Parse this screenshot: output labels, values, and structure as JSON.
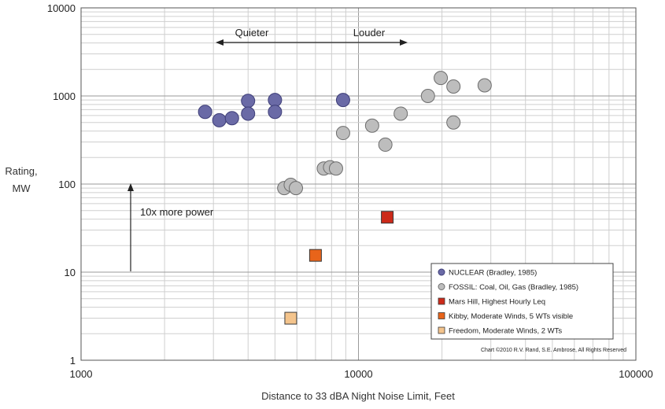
{
  "chart_data": {
    "type": "scatter",
    "xlabel": "Distance to 33 dBA Night Noise Limit, Feet",
    "ylabel": [
      "Rating,",
      "MW"
    ],
    "x_scale": "log",
    "y_scale": "log",
    "xlim": [
      1000,
      100000
    ],
    "ylim": [
      1,
      10000
    ],
    "x_ticks": [
      "1000",
      "10000",
      "100000"
    ],
    "y_ticks": [
      "1",
      "10",
      "100",
      "1000",
      "10000"
    ],
    "grid": true,
    "legend_position": "bottom-right",
    "series": [
      {
        "name": "NUCLEAR (Bradley, 1985)",
        "marker": "circle",
        "color": "#6a6aa6",
        "points": [
          {
            "x": 2800,
            "y": 660
          },
          {
            "x": 3150,
            "y": 530
          },
          {
            "x": 3500,
            "y": 560
          },
          {
            "x": 4000,
            "y": 880
          },
          {
            "x": 4000,
            "y": 630
          },
          {
            "x": 5000,
            "y": 900
          },
          {
            "x": 5000,
            "y": 660
          },
          {
            "x": 8800,
            "y": 900
          }
        ]
      },
      {
        "name": "FOSSIL: Coal, Oil, Gas (Bradley, 1985)",
        "marker": "circle",
        "color": "#bdbdbd",
        "points": [
          {
            "x": 5400,
            "y": 90
          },
          {
            "x": 5700,
            "y": 98
          },
          {
            "x": 5950,
            "y": 90
          },
          {
            "x": 7500,
            "y": 150
          },
          {
            "x": 7900,
            "y": 155
          },
          {
            "x": 8300,
            "y": 150
          },
          {
            "x": 8800,
            "y": 380
          },
          {
            "x": 11200,
            "y": 460
          },
          {
            "x": 12500,
            "y": 280
          },
          {
            "x": 14200,
            "y": 630
          },
          {
            "x": 17800,
            "y": 1000
          },
          {
            "x": 19800,
            "y": 1600
          },
          {
            "x": 22000,
            "y": 1280
          },
          {
            "x": 22000,
            "y": 500
          },
          {
            "x": 28500,
            "y": 1320
          }
        ]
      },
      {
        "name": "Mars Hill, Highest Hourly Leq",
        "marker": "square",
        "color": "#cc2a1a",
        "points": [
          {
            "x": 12700,
            "y": 42
          }
        ]
      },
      {
        "name": "Kibby, Moderate Winds, 5 WTs visible",
        "marker": "square",
        "color": "#e8641a",
        "points": [
          {
            "x": 7000,
            "y": 15.5
          }
        ]
      },
      {
        "name": "Freedom, Moderate Winds, 2 WTs",
        "marker": "square",
        "color": "#f4c48c",
        "points": [
          {
            "x": 5700,
            "y": 3
          }
        ]
      }
    ],
    "annotations": {
      "quieter": "Quieter",
      "louder": "Louder",
      "power": "10x more power",
      "copyright": "Chart ©2010 R.V. Rand, S.E. Ambrose, All Rights Reserved"
    }
  }
}
